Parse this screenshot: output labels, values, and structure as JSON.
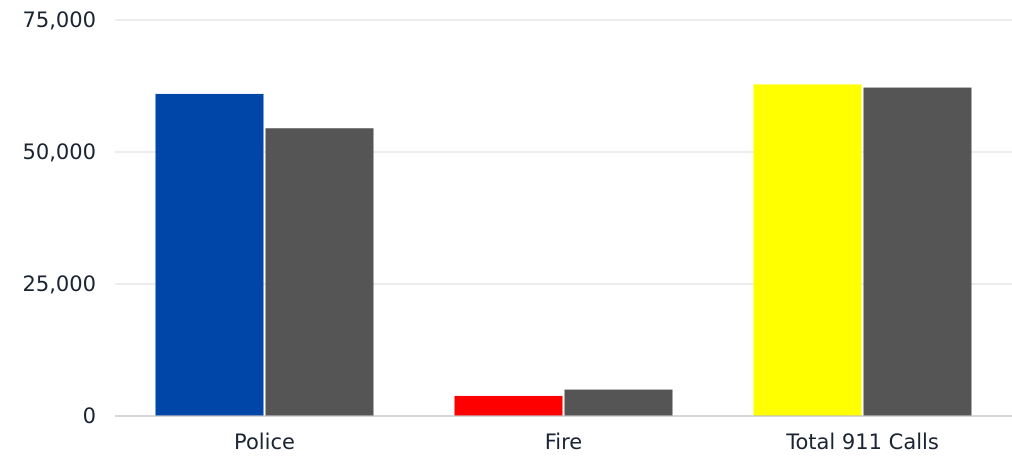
{
  "chart_data": {
    "type": "bar",
    "title": "",
    "xlabel": "",
    "ylabel": "",
    "categories": [
      "Police",
      "Fire",
      "Total 911 Calls"
    ],
    "series": [
      {
        "values": [
          61000,
          3800,
          62800
        ],
        "colors": [
          "#0046a8",
          "#ff0000",
          "#ffff00"
        ]
      },
      {
        "values": [
          54500,
          5000,
          62200
        ],
        "colors": [
          "#555555",
          "#555555",
          "#555555"
        ]
      }
    ],
    "ylim": [
      0,
      75000
    ],
    "yticks": [
      0,
      25000,
      50000,
      75000
    ],
    "ytick_labels": [
      "0",
      "25,000",
      "50,000",
      "75,000"
    ],
    "grid": true,
    "legend": "none"
  }
}
